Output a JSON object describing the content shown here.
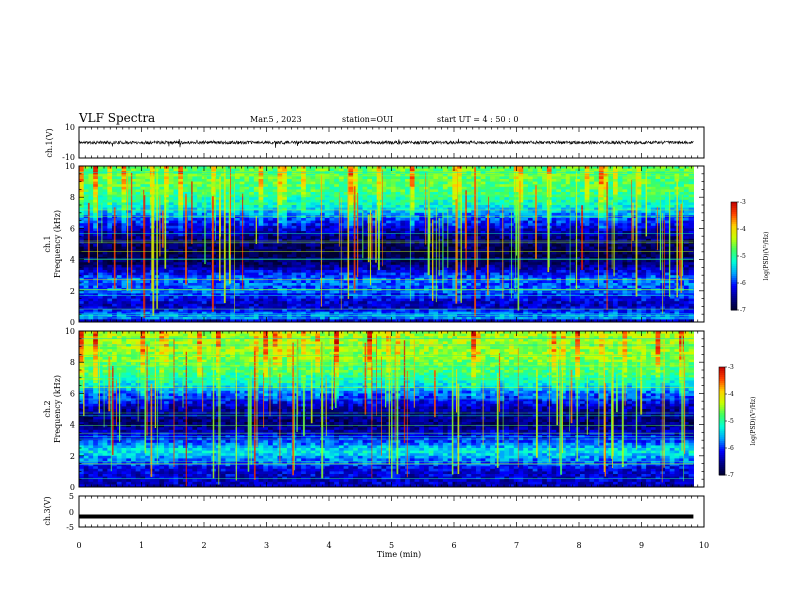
{
  "header": {
    "title": "VLF Spectra",
    "date": "Mar.5 , 2023",
    "station": "station=OUI",
    "start": "start UT =  4 : 50 : 0"
  },
  "colors": {
    "background": "#ffffff",
    "axis": "#000000",
    "spectrogram_stops": [
      "#000030",
      "#00008a",
      "#0000ff",
      "#00a0ff",
      "#00ffd8",
      "#40ff60",
      "#c8ff00",
      "#ffd000",
      "#ff4000",
      "#c00000"
    ]
  },
  "chart_data": [
    {
      "type": "line",
      "panel": "ch1-waveform",
      "ylabel": "ch.1(V)",
      "ylim": [
        -10,
        10
      ],
      "yticks": [
        "10",
        "-10"
      ],
      "xlim": [
        0,
        10
      ],
      "mean_level": 0,
      "series": [
        {
          "values": "noise waveform approx ±1 V around 0 V with spikes to ±3 V",
          "x": [
            0,
            9.83
          ]
        }
      ]
    },
    {
      "type": "heatmap",
      "panel": "ch1-spectrogram",
      "ylabel_lines": [
        "ch.1",
        "Frequency (kHz)"
      ],
      "ylim": [
        0,
        10
      ],
      "yticks": [
        "0",
        "2",
        "4",
        "6",
        "8",
        "10"
      ],
      "xlim": [
        0,
        10
      ],
      "data_end_min": 9.83,
      "colorbar": {
        "range": [
          -7,
          -3
        ],
        "ticks": [
          "-3",
          "-4",
          "-5",
          "-6",
          "-7"
        ],
        "label": "log(PSD)(V²/Hz)"
      },
      "profile_log_psd": [
        {
          "f_khz": 0.0,
          "v": -6.6
        },
        {
          "f_khz": 0.3,
          "v": -5.6
        },
        {
          "f_khz": 1.0,
          "v": -6.4
        },
        {
          "f_khz": 2.0,
          "v": -5.9
        },
        {
          "f_khz": 2.8,
          "v": -5.8
        },
        {
          "f_khz": 3.6,
          "v": -6.6
        },
        {
          "f_khz": 4.3,
          "v": -6.9
        },
        {
          "f_khz": 5.5,
          "v": -6.6
        },
        {
          "f_khz": 6.5,
          "v": -6.0
        },
        {
          "f_khz": 7.5,
          "v": -5.2
        },
        {
          "f_khz": 8.5,
          "v": -4.8
        },
        {
          "f_khz": 10.0,
          "v": -4.7
        }
      ]
    },
    {
      "type": "heatmap",
      "panel": "ch2-spectrogram",
      "ylabel_lines": [
        "ch.2",
        "Frequency (kHz)"
      ],
      "ylim": [
        0,
        10
      ],
      "yticks": [
        "0",
        "2",
        "4",
        "6",
        "8",
        "10"
      ],
      "xlim": [
        0,
        10
      ],
      "data_end_min": 9.83,
      "colorbar": {
        "range": [
          -7,
          -3
        ],
        "ticks": [
          "-3",
          "-4",
          "-5",
          "-6",
          "-7"
        ],
        "label": "log(PSD)(V²/Hz)"
      },
      "profile_log_psd": [
        {
          "f_khz": 0.0,
          "v": -6.4
        },
        {
          "f_khz": 1.2,
          "v": -6.2
        },
        {
          "f_khz": 2.3,
          "v": -5.3
        },
        {
          "f_khz": 3.0,
          "v": -6.0
        },
        {
          "f_khz": 4.0,
          "v": -6.7
        },
        {
          "f_khz": 5.0,
          "v": -6.5
        },
        {
          "f_khz": 6.0,
          "v": -5.8
        },
        {
          "f_khz": 7.0,
          "v": -5.0
        },
        {
          "f_khz": 8.5,
          "v": -4.5
        },
        {
          "f_khz": 10.0,
          "v": -4.4
        }
      ]
    },
    {
      "type": "line",
      "panel": "ch3-waveform",
      "ylabel": "ch.3(V)",
      "ylim": [
        -5,
        5
      ],
      "yticks": [
        "5",
        "0",
        "-5"
      ],
      "xlim": [
        0,
        10
      ],
      "series": [
        {
          "x": [
            0,
            9.83
          ],
          "values": [
            -1.6,
            -1.6
          ]
        }
      ]
    }
  ],
  "xaxis": {
    "label": "Time (min)",
    "ticks": [
      "0",
      "1",
      "2",
      "3",
      "4",
      "5",
      "6",
      "7",
      "8",
      "9",
      "10"
    ]
  }
}
